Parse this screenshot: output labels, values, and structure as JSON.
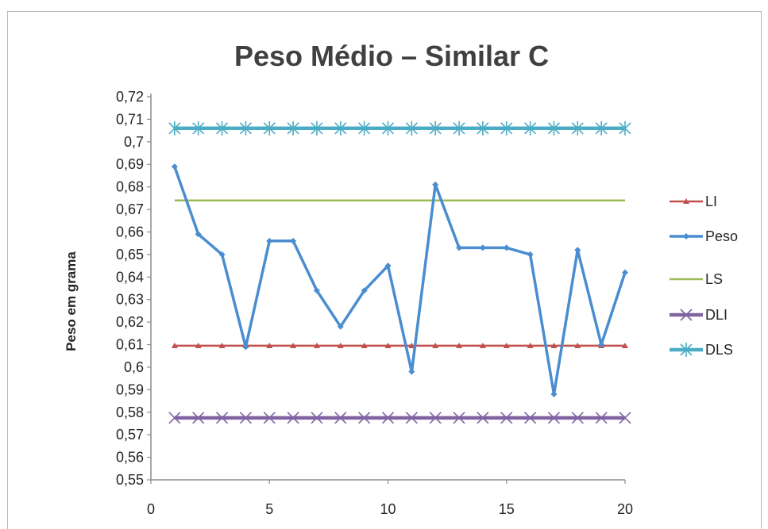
{
  "chart_data": {
    "type": "line",
    "title": "Peso Médio – Similar C",
    "xlabel": "",
    "ylabel": "Peso em grama",
    "xlim": [
      0,
      20
    ],
    "ylim": [
      0.55,
      0.72
    ],
    "x_ticks": [
      "0",
      "5",
      "10",
      "15",
      "20"
    ],
    "y_ticks": [
      "0,55",
      "0,56",
      "0,57",
      "0,58",
      "0,59",
      "0,6",
      "0,61",
      "0,62",
      "0,63",
      "0,64",
      "0,65",
      "0,66",
      "0,67",
      "0,68",
      "0,69",
      "0,7",
      "0,71",
      "0,72"
    ],
    "grid": false,
    "legend_position": "right",
    "x": [
      1,
      2,
      3,
      4,
      5,
      6,
      7,
      8,
      9,
      10,
      11,
      12,
      13,
      14,
      15,
      16,
      17,
      18,
      19,
      20
    ],
    "series": [
      {
        "name": "LI",
        "color": "#c0504d",
        "marker": "triangle",
        "values": [
          0.6095,
          0.6095,
          0.6095,
          0.6095,
          0.6095,
          0.6095,
          0.6095,
          0.6095,
          0.6095,
          0.6095,
          0.6095,
          0.6095,
          0.6095,
          0.6095,
          0.6095,
          0.6095,
          0.6095,
          0.6095,
          0.6095,
          0.6095
        ]
      },
      {
        "name": "Peso",
        "color": "#4a8dd0",
        "marker": "diamond",
        "values": [
          0.689,
          0.659,
          0.65,
          0.609,
          0.656,
          0.656,
          0.634,
          0.618,
          0.634,
          0.645,
          0.598,
          0.681,
          0.653,
          0.653,
          0.653,
          0.65,
          0.588,
          0.652,
          0.61,
          0.642
        ]
      },
      {
        "name": "LS",
        "color": "#9bbb59",
        "marker": "none",
        "values": [
          0.674,
          0.674,
          0.674,
          0.674,
          0.674,
          0.674,
          0.674,
          0.674,
          0.674,
          0.674,
          0.674,
          0.674,
          0.674,
          0.674,
          0.674,
          0.674,
          0.674,
          0.674,
          0.674,
          0.674
        ]
      },
      {
        "name": "DLI",
        "color": "#8064a2",
        "marker": "x",
        "values": [
          0.5775,
          0.5775,
          0.5775,
          0.5775,
          0.5775,
          0.5775,
          0.5775,
          0.5775,
          0.5775,
          0.5775,
          0.5775,
          0.5775,
          0.5775,
          0.5775,
          0.5775,
          0.5775,
          0.5775,
          0.5775,
          0.5775,
          0.5775
        ]
      },
      {
        "name": "DLS",
        "color": "#4bacc6",
        "marker": "star",
        "values": [
          0.706,
          0.706,
          0.706,
          0.706,
          0.706,
          0.706,
          0.706,
          0.706,
          0.706,
          0.706,
          0.706,
          0.706,
          0.706,
          0.706,
          0.706,
          0.706,
          0.706,
          0.706,
          0.706,
          0.706
        ]
      }
    ]
  },
  "colors": {
    "axis": "#8c8c8c",
    "frame_border": "#b9b9b9",
    "title_text": "#404040"
  }
}
